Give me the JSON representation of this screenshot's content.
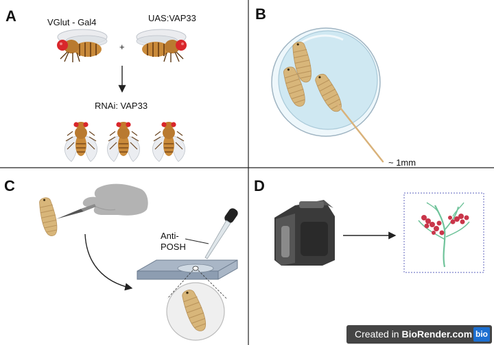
{
  "panels": {
    "a": {
      "letter": "A",
      "left_parent": "VGlut - Gal4",
      "right_parent": "UAS:VAP33",
      "plus": "+",
      "offspring": "RNAi: VAP33"
    },
    "b": {
      "letter": "B",
      "size": "~ 1mm"
    },
    "c": {
      "letter": "C",
      "antibody": "Anti-\nPOSH"
    },
    "d": {
      "letter": "D"
    }
  },
  "badge": {
    "prefix": "Created in ",
    "brand": "BioRender.com",
    "logo": "bio"
  },
  "colors": {
    "larva": "#d8b67a",
    "fly_body": "#c98a3a",
    "fly_eye": "#d9262b",
    "dish": "#cfe8f2",
    "neuron": "#6fc39a",
    "bouton": "#c9364a",
    "frame": "#7b7fc9"
  },
  "icons": [
    "fly-icon",
    "petri-dish-icon",
    "larva-icon",
    "toothpick-icon",
    "hand-icon",
    "scalpel-icon",
    "pipette-icon",
    "microscope-slide-icon",
    "magnifier-icon",
    "microscope-icon",
    "neuron-icon"
  ]
}
